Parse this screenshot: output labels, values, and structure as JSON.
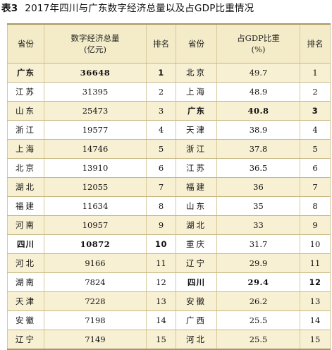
{
  "caption": {
    "number": "表3",
    "title": "2017年四川与广东数字经济总量以及占GDP比重情况"
  },
  "headers": {
    "prov1": "省份",
    "value_line1": "数字经济总量",
    "value_line2": "(亿元)",
    "rank1": "排名",
    "prov2": "省份",
    "share_line1": "占GDP比重",
    "share_line2": "(%)",
    "rank2": "排名"
  },
  "rows": [
    {
      "p1": "广东",
      "v": "36648",
      "r1": "1",
      "p2": "北京",
      "s": "49.7",
      "r2": "1",
      "hl1": true,
      "hl2": false
    },
    {
      "p1": "江苏",
      "v": "31395",
      "r1": "2",
      "p2": "上海",
      "s": "48.9",
      "r2": "2",
      "hl1": false,
      "hl2": false
    },
    {
      "p1": "山东",
      "v": "25473",
      "r1": "3",
      "p2": "广东",
      "s": "40.8",
      "r2": "3",
      "hl1": false,
      "hl2": true
    },
    {
      "p1": "浙江",
      "v": "19577",
      "r1": "4",
      "p2": "天津",
      "s": "38.9",
      "r2": "4",
      "hl1": false,
      "hl2": false
    },
    {
      "p1": "上海",
      "v": "14746",
      "r1": "5",
      "p2": "浙江",
      "s": "37.8",
      "r2": "5",
      "hl1": false,
      "hl2": false
    },
    {
      "p1": "北京",
      "v": "13910",
      "r1": "6",
      "p2": "江苏",
      "s": "36.5",
      "r2": "6",
      "hl1": false,
      "hl2": false
    },
    {
      "p1": "湖北",
      "v": "12055",
      "r1": "7",
      "p2": "福建",
      "s": "36",
      "r2": "7",
      "hl1": false,
      "hl2": false
    },
    {
      "p1": "福建",
      "v": "11634",
      "r1": "8",
      "p2": "山东",
      "s": "35",
      "r2": "8",
      "hl1": false,
      "hl2": false
    },
    {
      "p1": "河南",
      "v": "10957",
      "r1": "9",
      "p2": "湖北",
      "s": "33",
      "r2": "9",
      "hl1": false,
      "hl2": false
    },
    {
      "p1": "四川",
      "v": "10872",
      "r1": "10",
      "p2": "重庆",
      "s": "31.7",
      "r2": "10",
      "hl1": true,
      "hl2": false
    },
    {
      "p1": "河北",
      "v": "9166",
      "r1": "11",
      "p2": "辽宁",
      "s": "29.9",
      "r2": "11",
      "hl1": false,
      "hl2": false
    },
    {
      "p1": "湖南",
      "v": "7824",
      "r1": "12",
      "p2": "四川",
      "s": "29.4",
      "r2": "12",
      "hl1": false,
      "hl2": true
    },
    {
      "p1": "天津",
      "v": "7228",
      "r1": "13",
      "p2": "安徽",
      "s": "26.2",
      "r2": "13",
      "hl1": false,
      "hl2": false
    },
    {
      "p1": "安徽",
      "v": "7198",
      "r1": "14",
      "p2": "广西",
      "s": "25.5",
      "r2": "14",
      "hl1": false,
      "hl2": false
    },
    {
      "p1": "辽宁",
      "v": "7149",
      "r1": "15",
      "p2": "河北",
      "s": "25.5",
      "r2": "15",
      "hl1": false,
      "hl2": false
    }
  ]
}
